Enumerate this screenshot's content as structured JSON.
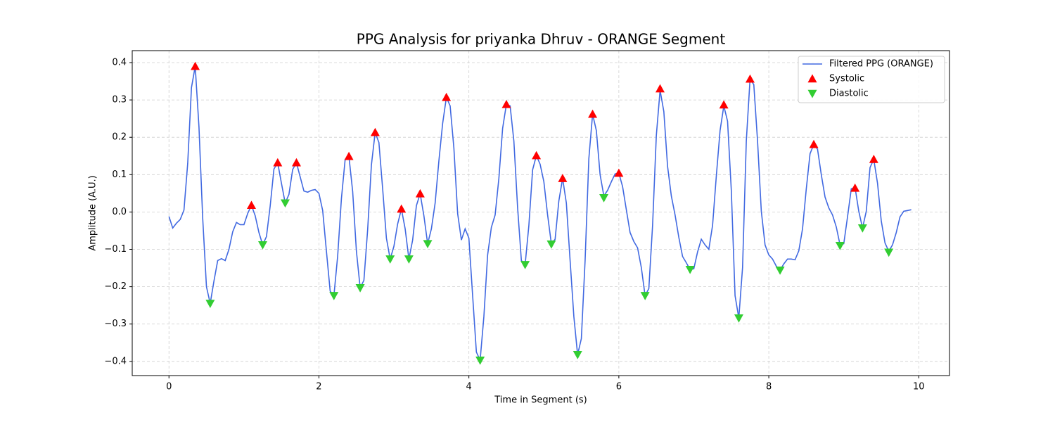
{
  "chart_data": {
    "type": "line",
    "title": "PPG Analysis for priyanka Dhruv - ORANGE Segment",
    "x_label": "Time in Segment (s)",
    "y_label": "Amplitude (A.U.)",
    "xlim": [
      -0.49,
      10.41
    ],
    "ylim": [
      -0.438,
      0.432
    ],
    "xticks": [
      0,
      2,
      4,
      6,
      8,
      10
    ],
    "yticks": [
      {
        "value": -0.4,
        "label": "−0.4"
      },
      {
        "value": -0.3,
        "label": "−0.3"
      },
      {
        "value": -0.2,
        "label": "−0.2"
      },
      {
        "value": -0.1,
        "label": "−0.1"
      },
      {
        "value": 0,
        "label": "0.0"
      },
      0.1,
      0.2,
      0.3,
      0.4
    ],
    "grid": true,
    "legend": "upper right",
    "series": [
      {
        "name": "Filtered PPG (ORANGE)",
        "color": "#4169e1",
        "mode": "line",
        "x": [
          0,
          0.05,
          0.1,
          0.15,
          0.2,
          0.25,
          0.3,
          0.35,
          0.4,
          0.45,
          0.5,
          0.55,
          0.6,
          0.65,
          0.7,
          0.75,
          0.8,
          0.85,
          0.9,
          0.95,
          1.0,
          1.05,
          1.1,
          1.15,
          1.2,
          1.25,
          1.3,
          1.35,
          1.4,
          1.45,
          1.5,
          1.55,
          1.6,
          1.65,
          1.7,
          1.75,
          1.8,
          1.85,
          1.9,
          1.95,
          2.0,
          2.05,
          2.1,
          2.15,
          2.2,
          2.25,
          2.3,
          2.35,
          2.4,
          2.45,
          2.5,
          2.55,
          2.6,
          2.65,
          2.7,
          2.75,
          2.8,
          2.85,
          2.9,
          2.95,
          3.0,
          3.05,
          3.1,
          3.15,
          3.2,
          3.25,
          3.3,
          3.35,
          3.4,
          3.45,
          3.5,
          3.55,
          3.6,
          3.65,
          3.7,
          3.75,
          3.8,
          3.85,
          3.9,
          3.95,
          4.0,
          4.05,
          4.1,
          4.15,
          4.2,
          4.25,
          4.3,
          4.35,
          4.4,
          4.45,
          4.5,
          4.55,
          4.6,
          4.65,
          4.7,
          4.75,
          4.8,
          4.85,
          4.9,
          4.95,
          5.0,
          5.05,
          5.1,
          5.15,
          5.2,
          5.25,
          5.3,
          5.35,
          5.4,
          5.45,
          5.5,
          5.55,
          5.6,
          5.65,
          5.7,
          5.75,
          5.8,
          5.85,
          5.9,
          5.95,
          6.0,
          6.05,
          6.1,
          6.15,
          6.2,
          6.25,
          6.3,
          6.35,
          6.4,
          6.45,
          6.5,
          6.55,
          6.6,
          6.65,
          6.7,
          6.75,
          6.8,
          6.85,
          6.9,
          6.95,
          7.0,
          7.05,
          7.1,
          7.15,
          7.2,
          7.25,
          7.3,
          7.35,
          7.4,
          7.45,
          7.5,
          7.55,
          7.6,
          7.65,
          7.7,
          7.75,
          7.8,
          7.85,
          7.9,
          7.95,
          8.0,
          8.05,
          8.1,
          8.15,
          8.2,
          8.25,
          8.3,
          8.35,
          8.4,
          8.45,
          8.5,
          8.55,
          8.6,
          8.65,
          8.7,
          8.75,
          8.8,
          8.85,
          8.9,
          8.95,
          9.0,
          9.05,
          9.1,
          9.15,
          9.2,
          9.25,
          9.3,
          9.35,
          9.4,
          9.45,
          9.5,
          9.55,
          9.6,
          9.65,
          9.7,
          9.75,
          9.8,
          9.85,
          9.9
        ],
        "values": [
          -0.012,
          -0.043,
          -0.03,
          -0.02,
          0.005,
          0.13,
          0.333,
          0.39,
          0.228,
          -0.017,
          -0.2,
          -0.245,
          -0.185,
          -0.13,
          -0.125,
          -0.13,
          -0.1,
          -0.053,
          -0.028,
          -0.034,
          -0.034,
          -0.004,
          0.018,
          -0.01,
          -0.055,
          -0.088,
          -0.066,
          0.016,
          0.115,
          0.132,
          0.077,
          0.024,
          0.047,
          0.114,
          0.132,
          0.094,
          0.056,
          0.053,
          0.058,
          0.06,
          0.05,
          0.004,
          -0.105,
          -0.212,
          -0.224,
          -0.118,
          0.036,
          0.141,
          0.149,
          0.055,
          -0.105,
          -0.203,
          -0.183,
          -0.047,
          0.126,
          0.213,
          0.186,
          0.062,
          -0.07,
          -0.126,
          -0.092,
          -0.032,
          0.008,
          -0.045,
          -0.126,
          -0.075,
          0.017,
          0.049,
          -0.01,
          -0.085,
          -0.045,
          0.024,
          0.137,
          0.237,
          0.307,
          0.284,
          0.171,
          -0.004,
          -0.075,
          -0.045,
          -0.07,
          -0.224,
          -0.375,
          -0.397,
          -0.28,
          -0.115,
          -0.041,
          -0.008,
          0.09,
          0.224,
          0.288,
          0.284,
          0.19,
          0.011,
          -0.13,
          -0.141,
          -0.036,
          0.113,
          0.151,
          0.128,
          0.081,
          -0.008,
          -0.085,
          -0.073,
          0.03,
          0.09,
          0.024,
          -0.13,
          -0.28,
          -0.382,
          -0.339,
          -0.13,
          0.143,
          0.262,
          0.218,
          0.1,
          0.043,
          0.058,
          0.081,
          0.102,
          0.104,
          0.068,
          0.006,
          -0.055,
          -0.079,
          -0.096,
          -0.149,
          -0.224,
          -0.205,
          -0.036,
          0.205,
          0.326,
          0.269,
          0.122,
          0.043,
          -0.008,
          -0.068,
          -0.119,
          -0.136,
          -0.154,
          -0.152,
          -0.107,
          -0.073,
          -0.088,
          -0.1,
          -0.036,
          0.096,
          0.218,
          0.284,
          0.243,
          0.058,
          -0.224,
          -0.284,
          -0.149,
          0.19,
          0.356,
          0.341,
          0.19,
          0.002,
          -0.088,
          -0.115,
          -0.126,
          -0.145,
          -0.156,
          -0.139,
          -0.126,
          -0.126,
          -0.128,
          -0.104,
          -0.045,
          0.062,
          0.156,
          0.181,
          0.168,
          0.1,
          0.04,
          0.011,
          -0.008,
          -0.04,
          -0.088,
          -0.085,
          -0.013,
          0.062,
          0.066,
          0.002,
          -0.043,
          0.002,
          0.119,
          0.141,
          0.077,
          -0.024,
          -0.083,
          -0.105,
          -0.088,
          -0.055,
          -0.013,
          0.002,
          0.004,
          0.006
        ]
      },
      {
        "name": "Systolic",
        "color": "#ff0000",
        "mode": "marker-up",
        "x": [
          0.35,
          1.1,
          1.45,
          1.7,
          2.4,
          2.75,
          3.1,
          3.35,
          3.7,
          4.5,
          4.9,
          5.25,
          5.65,
          6.0,
          6.55,
          7.4,
          7.75,
          8.6,
          9.15,
          9.4
        ],
        "values": [
          0.39,
          0.018,
          0.132,
          0.132,
          0.149,
          0.213,
          0.008,
          0.049,
          0.307,
          0.288,
          0.151,
          0.09,
          0.262,
          0.104,
          0.33,
          0.287,
          0.356,
          0.181,
          0.064,
          0.141
        ]
      },
      {
        "name": "Diastolic",
        "color": "#32cd32",
        "mode": "marker-down",
        "x": [
          0.55,
          1.25,
          1.55,
          2.2,
          2.55,
          2.95,
          3.2,
          3.45,
          4.15,
          4.75,
          5.1,
          5.45,
          5.8,
          6.35,
          6.95,
          7.6,
          8.15,
          8.95,
          9.25,
          9.6
        ],
        "values": [
          -0.245,
          -0.088,
          0.024,
          -0.224,
          -0.203,
          -0.126,
          -0.126,
          -0.085,
          -0.397,
          -0.141,
          -0.086,
          -0.382,
          0.038,
          -0.224,
          -0.154,
          -0.284,
          -0.156,
          -0.09,
          -0.043,
          -0.108
        ]
      }
    ]
  }
}
